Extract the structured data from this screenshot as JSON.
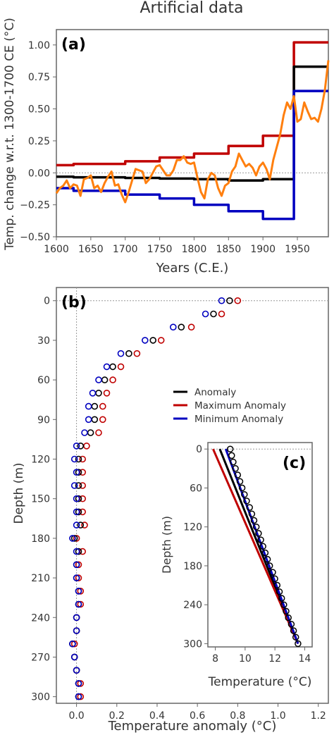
{
  "figure": {
    "title": "Artificial data"
  },
  "chart_data": [
    {
      "panel": "(a)",
      "type": "line",
      "xlabel": "Years (C.E.)",
      "ylabel": "Temp. change w.r.t. 1300-1700 CE (°C)",
      "xlim": [
        1600,
        1995
      ],
      "ylim": [
        -0.5,
        1.12
      ],
      "xticks": [
        1600,
        1650,
        1700,
        1750,
        1800,
        1850,
        1900,
        1950
      ],
      "yticks": [
        -0.5,
        -0.25,
        0.0,
        0.25,
        0.5,
        0.75,
        1.0
      ],
      "ytick_labels": [
        "−0.50",
        "−0.25",
        "0.00",
        "0.25",
        "0.50",
        "0.75",
        "1.00"
      ],
      "zero_line": true,
      "grid": false,
      "series": [
        {
          "role": "maximum",
          "color": "#c00000",
          "x": [
            1600,
            1625,
            1625,
            1700,
            1700,
            1750,
            1750,
            1800,
            1800,
            1850,
            1850,
            1900,
            1900,
            1945,
            1945,
            1995
          ],
          "y": [
            0.06,
            0.06,
            0.07,
            0.07,
            0.09,
            0.09,
            0.12,
            0.12,
            0.15,
            0.15,
            0.21,
            0.21,
            0.29,
            0.29,
            1.02,
            1.02
          ]
        },
        {
          "role": "anomaly",
          "color": "#000000",
          "x": [
            1600,
            1625,
            1625,
            1700,
            1700,
            1750,
            1750,
            1800,
            1800,
            1850,
            1850,
            1900,
            1900,
            1945,
            1945,
            1995
          ],
          "y": [
            -0.03,
            -0.03,
            -0.035,
            -0.035,
            -0.04,
            -0.04,
            -0.045,
            -0.045,
            -0.05,
            -0.05,
            -0.06,
            -0.06,
            -0.05,
            -0.05,
            0.83,
            0.83
          ]
        },
        {
          "role": "minimum",
          "color": "#0000c0",
          "x": [
            1600,
            1625,
            1625,
            1700,
            1700,
            1750,
            1750,
            1800,
            1800,
            1850,
            1850,
            1900,
            1900,
            1945,
            1945,
            1995
          ],
          "y": [
            -0.12,
            -0.12,
            -0.14,
            -0.14,
            -0.17,
            -0.17,
            -0.2,
            -0.2,
            -0.25,
            -0.25,
            -0.3,
            -0.3,
            -0.36,
            -0.36,
            0.64,
            0.64
          ]
        },
        {
          "role": "artificial-series",
          "color": "#ff7f0e",
          "x": [
            1600,
            1605,
            1610,
            1615,
            1620,
            1625,
            1630,
            1635,
            1640,
            1645,
            1650,
            1655,
            1660,
            1665,
            1670,
            1675,
            1680,
            1685,
            1690,
            1695,
            1700,
            1705,
            1710,
            1715,
            1720,
            1725,
            1730,
            1735,
            1740,
            1745,
            1750,
            1755,
            1760,
            1765,
            1770,
            1775,
            1780,
            1785,
            1790,
            1795,
            1800,
            1805,
            1810,
            1815,
            1820,
            1825,
            1830,
            1835,
            1840,
            1845,
            1850,
            1855,
            1860,
            1865,
            1870,
            1875,
            1880,
            1885,
            1890,
            1895,
            1900,
            1905,
            1910,
            1915,
            1920,
            1925,
            1930,
            1935,
            1940,
            1945,
            1950,
            1955,
            1960,
            1965,
            1970,
            1975,
            1980,
            1985,
            1990,
            1995
          ],
          "y": [
            -0.16,
            -0.12,
            -0.1,
            -0.06,
            -0.12,
            -0.09,
            -0.1,
            -0.18,
            -0.05,
            -0.04,
            -0.02,
            -0.12,
            -0.1,
            -0.15,
            -0.08,
            -0.03,
            0.01,
            -0.1,
            -0.09,
            -0.17,
            -0.23,
            -0.15,
            -0.06,
            0.03,
            0.02,
            0.01,
            -0.08,
            -0.05,
            0.0,
            0.05,
            0.06,
            0.02,
            -0.02,
            -0.02,
            0.02,
            0.1,
            0.1,
            0.13,
            0.08,
            0.07,
            0.08,
            -0.04,
            -0.15,
            -0.2,
            -0.05,
            0.0,
            -0.02,
            -0.12,
            -0.18,
            -0.1,
            -0.08,
            0.01,
            0.05,
            0.15,
            0.1,
            0.05,
            0.07,
            0.04,
            -0.02,
            0.05,
            0.08,
            0.03,
            -0.05,
            0.1,
            0.2,
            0.3,
            0.45,
            0.55,
            0.5,
            0.6,
            0.4,
            0.42,
            0.55,
            0.48,
            0.42,
            0.43,
            0.4,
            0.5,
            0.65,
            0.88
          ]
        }
      ]
    },
    {
      "panel": "(b)",
      "type": "scatter",
      "xlabel": "Temperature anomaly (°C)",
      "ylabel": "Depth (m)",
      "xlim": [
        -0.1,
        1.25
      ],
      "ylim": [
        305,
        -10
      ],
      "xticks": [
        0.0,
        0.2,
        0.4,
        0.6,
        0.8,
        1.0,
        1.2
      ],
      "yticks": [
        0,
        30,
        60,
        90,
        120,
        150,
        180,
        210,
        240,
        270,
        300
      ],
      "reference_lines": {
        "x": 0.0,
        "y": 0
      },
      "legend": {
        "placement": "right",
        "entries": [
          {
            "label": "Anomaly",
            "color": "#000000"
          },
          {
            "label": "Maximum Anomaly",
            "color": "#c00000"
          },
          {
            "label": "Minimum Anomaly",
            "color": "#0000c0"
          }
        ]
      },
      "series": [
        {
          "role": "maximum",
          "color": "#c00000",
          "depth": [
            0,
            10,
            20,
            30,
            40,
            50,
            60,
            70,
            80,
            90,
            100,
            110,
            120,
            130,
            140,
            150,
            160,
            170,
            180,
            190,
            200,
            210,
            220,
            230,
            240,
            250,
            260,
            270,
            280,
            290,
            300
          ],
          "value": [
            0.8,
            0.72,
            0.57,
            0.42,
            0.3,
            0.22,
            0.18,
            0.15,
            0.13,
            0.13,
            0.11,
            0.05,
            0.03,
            0.03,
            0.03,
            0.03,
            0.03,
            0.04,
            0.0,
            0.03,
            0.01,
            0.01,
            0.02,
            0.02,
            0.0,
            0.0,
            -0.01,
            -0.01,
            0.0,
            0.02,
            0.02
          ]
        },
        {
          "role": "anomaly",
          "color": "#000000",
          "depth": [
            0,
            10,
            20,
            30,
            40,
            50,
            60,
            70,
            80,
            90,
            100,
            110,
            120,
            130,
            140,
            150,
            160,
            170,
            180,
            190,
            200,
            210,
            220,
            230,
            240,
            250,
            260,
            270,
            280,
            290,
            300
          ],
          "value": [
            0.76,
            0.68,
            0.52,
            0.38,
            0.26,
            0.18,
            0.14,
            0.11,
            0.09,
            0.09,
            0.07,
            0.02,
            0.01,
            0.01,
            0.01,
            0.01,
            0.01,
            0.02,
            -0.01,
            0.01,
            0.0,
            0.0,
            0.01,
            0.01,
            0.0,
            0.0,
            -0.02,
            -0.01,
            0.0,
            0.01,
            0.01
          ]
        },
        {
          "role": "minimum",
          "color": "#0000c0",
          "depth": [
            0,
            10,
            20,
            30,
            40,
            50,
            60,
            70,
            80,
            90,
            100,
            110,
            120,
            130,
            140,
            150,
            160,
            170,
            180,
            190,
            200,
            210,
            220,
            230,
            240,
            250,
            260,
            270,
            280,
            290,
            300
          ],
          "value": [
            0.72,
            0.64,
            0.48,
            0.34,
            0.22,
            0.15,
            0.11,
            0.08,
            0.06,
            0.06,
            0.04,
            0.0,
            -0.01,
            0.0,
            -0.01,
            0.0,
            0.0,
            0.0,
            -0.02,
            0.0,
            0.0,
            0.0,
            0.01,
            0.01,
            0.0,
            0.0,
            -0.02,
            -0.01,
            0.0,
            0.01,
            0.01
          ]
        }
      ]
    },
    {
      "panel": "(c)",
      "type": "scatter",
      "xlabel": "Temperature (°C)",
      "ylabel": "Depth (m)",
      "xlim": [
        7.5,
        14.5
      ],
      "ylim": [
        305,
        -10
      ],
      "xticks": [
        8,
        10,
        12,
        14
      ],
      "yticks": [
        0,
        60,
        120,
        180,
        240,
        300
      ],
      "reference_lines": {
        "y": 0
      },
      "points": {
        "color": "#000000",
        "depth": [
          0,
          10,
          20,
          30,
          40,
          50,
          60,
          70,
          80,
          90,
          100,
          110,
          120,
          130,
          140,
          150,
          160,
          170,
          180,
          190,
          200,
          210,
          220,
          230,
          240,
          250,
          260,
          270,
          280,
          290,
          300
        ],
        "temperature": [
          9.0,
          9.1,
          9.2,
          9.35,
          9.5,
          9.65,
          9.8,
          9.95,
          10.1,
          10.3,
          10.45,
          10.6,
          10.75,
          10.9,
          11.05,
          11.2,
          11.35,
          11.5,
          11.65,
          11.85,
          12.0,
          12.15,
          12.3,
          12.45,
          12.6,
          12.75,
          12.9,
          13.1,
          13.25,
          13.4,
          13.55
        ]
      },
      "lines": [
        {
          "role": "anomaly",
          "color": "#000000",
          "temperature": [
            8.3,
            13.55
          ],
          "depth": [
            0,
            300
          ]
        },
        {
          "role": "maximum",
          "color": "#c00000",
          "temperature": [
            7.85,
            13.55
          ],
          "depth": [
            0,
            300
          ]
        },
        {
          "role": "minimum",
          "color": "#0000c0",
          "temperature": [
            8.7,
            13.55
          ],
          "depth": [
            0,
            300
          ]
        }
      ]
    }
  ]
}
